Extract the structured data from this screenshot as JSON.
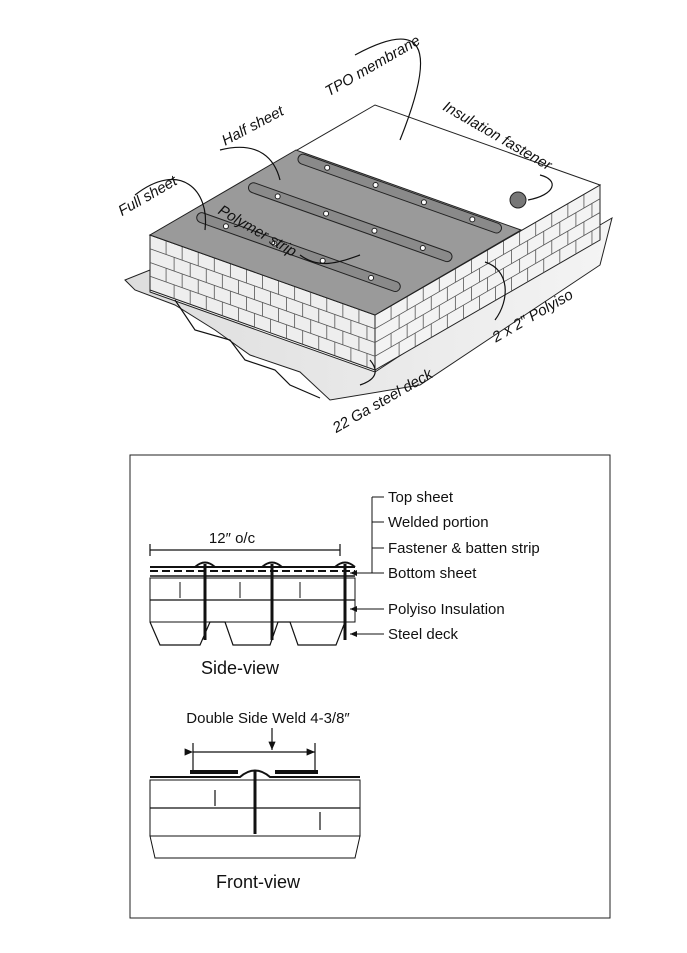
{
  "isometric": {
    "labels": {
      "tpo_membrane": "TPO membrane",
      "half_sheet": "Half sheet",
      "full_sheet": "Full sheet",
      "insulation_fastener": "Insulation fastener",
      "polymer_strip": "Polymer strip",
      "polyiso": "2 x 2″ Polyiso",
      "steel_deck": "22 Ga steel deck"
    }
  },
  "side_view": {
    "spacing_label": "12″ o/c",
    "title": "Side-view",
    "legend": [
      "Top sheet",
      "Welded portion",
      "Fastener & batten strip",
      "Bottom sheet",
      "Polyiso Insulation",
      "Steel deck"
    ]
  },
  "front_view": {
    "dimension_label": "Double Side Weld 4-3/8″",
    "title": "Front-view"
  }
}
